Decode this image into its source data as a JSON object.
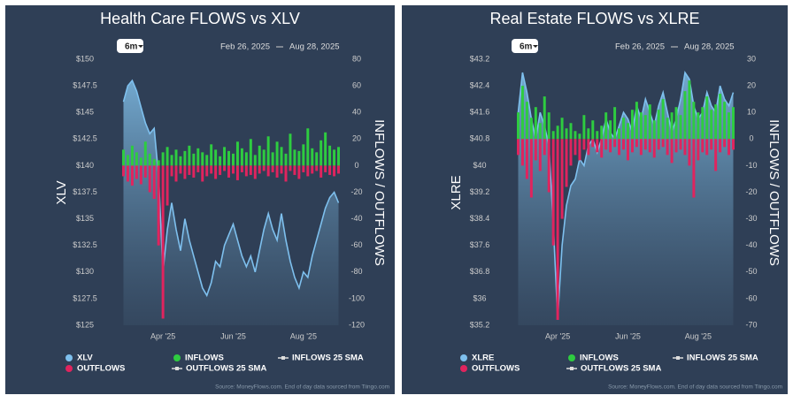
{
  "chart_data": [
    {
      "type": "combo",
      "title": "Health Care FLOWS vs XLV",
      "range_button": "6m",
      "date_from": "Feb 26, 2025",
      "date_to": "Aug 28, 2025",
      "y_label": "XLV",
      "y2_label": "INFLOWS / OUTFLOWS",
      "source": "Source: MoneyFlows.com. End of day data sourced from Tiingo.com",
      "categories": [
        null,
        null,
        null,
        null,
        null,
        null,
        null,
        null,
        null,
        "Apr '25",
        null,
        null,
        null,
        null,
        null,
        null,
        null,
        null,
        null,
        null,
        null,
        null,
        null,
        null,
        null,
        "Jun '25",
        null,
        null,
        null,
        null,
        null,
        null,
        null,
        null,
        null,
        null,
        null,
        null,
        null,
        null,
        null,
        "Aug '25",
        null,
        null,
        null,
        null,
        null,
        null,
        null,
        null
      ],
      "ylim": [
        125,
        150
      ],
      "yticks": [
        {
          "value": 125,
          "label": "$125"
        },
        {
          "value": 127.5,
          "label": "$127.5"
        },
        {
          "value": 130,
          "label": "$130"
        },
        {
          "value": 132.5,
          "label": "$132.5"
        },
        {
          "value": 135,
          "label": "$135"
        },
        {
          "value": 137.5,
          "label": "$137.5"
        },
        {
          "value": 140,
          "label": "$140"
        },
        {
          "value": 142.5,
          "label": "$142.5"
        },
        {
          "value": 145,
          "label": "$145"
        },
        {
          "value": 147.5,
          "label": "$147.5"
        },
        {
          "value": 150,
          "label": "$150"
        }
      ],
      "y2lim": [
        -120,
        80
      ],
      "y2ticks": [
        -120,
        -100,
        -80,
        -60,
        -40,
        -20,
        0,
        20,
        40,
        60,
        80
      ],
      "series": [
        {
          "name": "XLV",
          "color": "#7ec0ee",
          "kind": "area",
          "axis": "y",
          "values": [
            146,
            147.5,
            148,
            147,
            145.5,
            144,
            143,
            143.5,
            139,
            130,
            134,
            136.5,
            134,
            132,
            135,
            133,
            131.5,
            130,
            128.5,
            127.8,
            129,
            131,
            130.5,
            132.5,
            133.5,
            134.5,
            133,
            131.5,
            130.5,
            131.5,
            130,
            132,
            134,
            135.5,
            134,
            133,
            135.5,
            133,
            131,
            129.5,
            128.5,
            130,
            129.5,
            131.5,
            133,
            134.5,
            136,
            137,
            137.5,
            136.5
          ]
        },
        {
          "name": "INFLOWS",
          "color": "#2ecc40",
          "kind": "bar",
          "axis": "y2",
          "values": [
            12,
            8,
            15,
            10,
            6,
            18,
            9,
            5,
            4,
            10,
            14,
            8,
            12,
            7,
            11,
            15,
            9,
            13,
            10,
            8,
            16,
            12,
            7,
            14,
            11,
            9,
            18,
            13,
            10,
            20,
            8,
            15,
            12,
            22,
            10,
            18,
            14,
            9,
            24,
            12,
            11,
            16,
            28,
            13,
            10,
            19,
            25,
            15,
            12,
            14
          ]
        },
        {
          "name": "OUTFLOWS",
          "color": "#e0245e",
          "kind": "bar",
          "axis": "y2",
          "values": [
            -8,
            -12,
            -15,
            -10,
            -14,
            -9,
            -20,
            -25,
            -60,
            -115,
            -30,
            -8,
            -12,
            -6,
            -10,
            -7,
            -9,
            -5,
            -12,
            -8,
            -6,
            -10,
            -7,
            -4,
            -9,
            -6,
            -11,
            -5,
            -8,
            -7,
            -10,
            -6,
            -4,
            -8,
            -5,
            -9,
            -6,
            -12,
            -4,
            -7,
            -10,
            -5,
            -8,
            -6,
            -4,
            -9,
            -5,
            -7,
            -8,
            -6
          ]
        }
      ],
      "sma_series": [
        {
          "name": "INFLOWS 25 SMA",
          "color": "#dddddd"
        },
        {
          "name": "OUTFLOWS 25 SMA",
          "color": "#dddddd"
        }
      ]
    },
    {
      "type": "combo",
      "title": "Real Estate FLOWS vs XLRE",
      "range_button": "6m",
      "date_from": "Feb 26, 2025",
      "date_to": "Aug 28, 2025",
      "y_label": "XLRE",
      "y2_label": "INFLOWS / OUTFLOWS",
      "source": "Source: MoneyFlows.com. End of day data sourced from Tiingo.com",
      "categories": [
        null,
        null,
        null,
        null,
        null,
        null,
        null,
        null,
        null,
        "Apr '25",
        null,
        null,
        null,
        null,
        null,
        null,
        null,
        null,
        null,
        null,
        null,
        null,
        null,
        null,
        null,
        "Jun '25",
        null,
        null,
        null,
        null,
        null,
        null,
        null,
        null,
        null,
        null,
        null,
        null,
        null,
        null,
        null,
        "Aug '25",
        null,
        null,
        null,
        null,
        null,
        null,
        null,
        null
      ],
      "ylim": [
        35.2,
        43.2
      ],
      "yticks": [
        {
          "value": 35.2,
          "label": "$35.2"
        },
        {
          "value": 36,
          "label": "$36"
        },
        {
          "value": 36.8,
          "label": "$36.8"
        },
        {
          "value": 37.6,
          "label": "$37.6"
        },
        {
          "value": 38.4,
          "label": "$38.4"
        },
        {
          "value": 39.2,
          "label": "$39.2"
        },
        {
          "value": 40,
          "label": "$40"
        },
        {
          "value": 40.8,
          "label": "$40.8"
        },
        {
          "value": 41.6,
          "label": "$41.6"
        },
        {
          "value": 42.4,
          "label": "$42.4"
        },
        {
          "value": 43.2,
          "label": "$43.2"
        }
      ],
      "y2lim": [
        -70,
        30
      ],
      "y2ticks": [
        -70,
        -60,
        -50,
        -40,
        -30,
        -20,
        -10,
        0,
        10,
        20,
        30
      ],
      "series": [
        {
          "name": "XLRE",
          "color": "#7ec0ee",
          "kind": "area",
          "axis": "y",
          "values": [
            41.6,
            42.8,
            42.2,
            41.4,
            40.8,
            41.6,
            41.2,
            40.6,
            38.2,
            35.4,
            37.6,
            38.8,
            39.4,
            39.6,
            40.2,
            40,
            40.6,
            40.8,
            40.4,
            40.8,
            41.4,
            41,
            40.8,
            41.2,
            41.6,
            41.4,
            41,
            41.8,
            41.4,
            42,
            41.6,
            41.2,
            41.8,
            42.2,
            41.6,
            41,
            41.4,
            42,
            42.8,
            42.6,
            41.8,
            41.4,
            41.6,
            42.2,
            41.8,
            41.6,
            42.4,
            42,
            41.8,
            42.2
          ]
        },
        {
          "name": "INFLOWS",
          "color": "#2ecc40",
          "kind": "bar",
          "axis": "y2",
          "values": [
            10,
            20,
            14,
            8,
            12,
            6,
            16,
            10,
            3,
            5,
            8,
            4,
            6,
            3,
            2,
            9,
            4,
            7,
            3,
            5,
            10,
            7,
            12,
            4,
            8,
            6,
            11,
            14,
            10,
            9,
            13,
            7,
            11,
            15,
            8,
            10,
            12,
            9,
            18,
            22,
            14,
            10,
            12,
            16,
            11,
            13,
            17,
            14,
            10,
            12
          ]
        },
        {
          "name": "OUTFLOWS",
          "color": "#e0245e",
          "kind": "bar",
          "axis": "y2",
          "values": [
            -6,
            -10,
            -15,
            -22,
            -8,
            -12,
            -6,
            -20,
            -40,
            -68,
            -30,
            -18,
            -10,
            -6,
            -8,
            -4,
            -6,
            -3,
            -5,
            -7,
            -4,
            -5,
            -3,
            -6,
            -4,
            -8,
            -5,
            -3,
            -6,
            -4,
            -5,
            -7,
            -4,
            -3,
            -6,
            -9,
            -5,
            -4,
            -6,
            -10,
            -22,
            -8,
            -5,
            -6,
            -4,
            -12,
            -5,
            -3,
            -6,
            -4
          ]
        }
      ],
      "sma_series": [
        {
          "name": "INFLOWS 25 SMA",
          "color": "#dddddd"
        },
        {
          "name": "OUTFLOWS 25 SMA",
          "color": "#dddddd"
        }
      ]
    }
  ]
}
